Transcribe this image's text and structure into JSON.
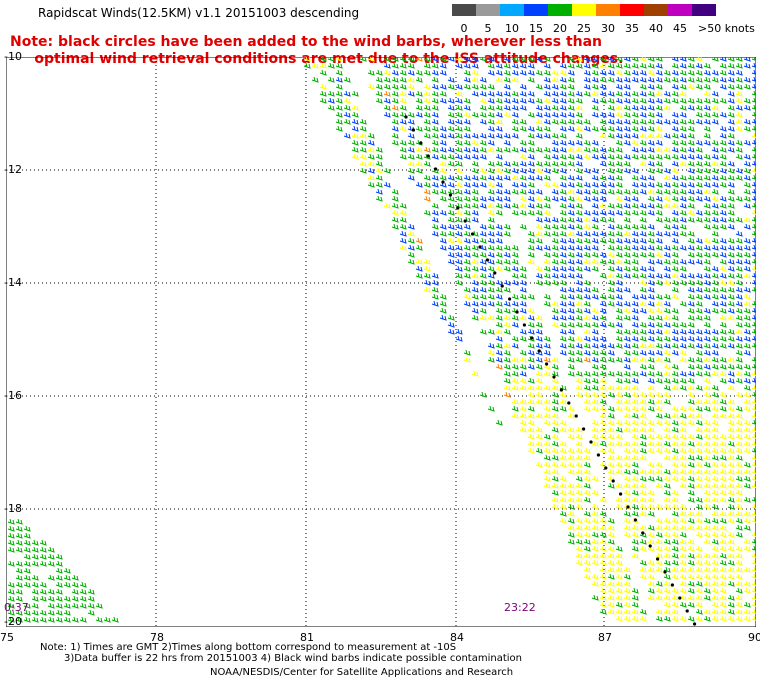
{
  "title": "Rapidscat Winds(12.5KM) v1.1 20151003 descending",
  "note": "Note: black circles have been added to the wind barbs, wherever less than\n     optimal wind retrieval conditions are met due to the ISS attitude changes.",
  "legend": {
    "labels": [
      "0",
      "5",
      "10",
      "15",
      "20",
      "25",
      "30",
      "35",
      "40",
      "45",
      ">50 knots"
    ],
    "colors": [
      "#4a4a4a",
      "#9a9a9a",
      "#00a8ff",
      "#0040ff",
      "#00b000",
      "#ffff00",
      "#ff8000",
      "#ff0000",
      "#a04000",
      "#c000c0",
      "#400080"
    ]
  },
  "map": {
    "lat_labels": [
      "-10",
      "-12",
      "-14",
      "-16",
      "-18",
      "-20"
    ],
    "lon_labels": [
      "75",
      "78",
      "81",
      "84",
      "87",
      "90"
    ],
    "time_labels": [
      "0:37",
      "23:22"
    ]
  },
  "footer": {
    "line1": "Note: 1) Times are GMT 2)Times along bottom correspond to measurement at -10S",
    "line2": "3)Data buffer is 22 hrs from 20151003 4) Black wind barbs indicate possible contamination",
    "line3": "NOAA/NESDIS/Center for Satellite Applications and Research"
  }
}
